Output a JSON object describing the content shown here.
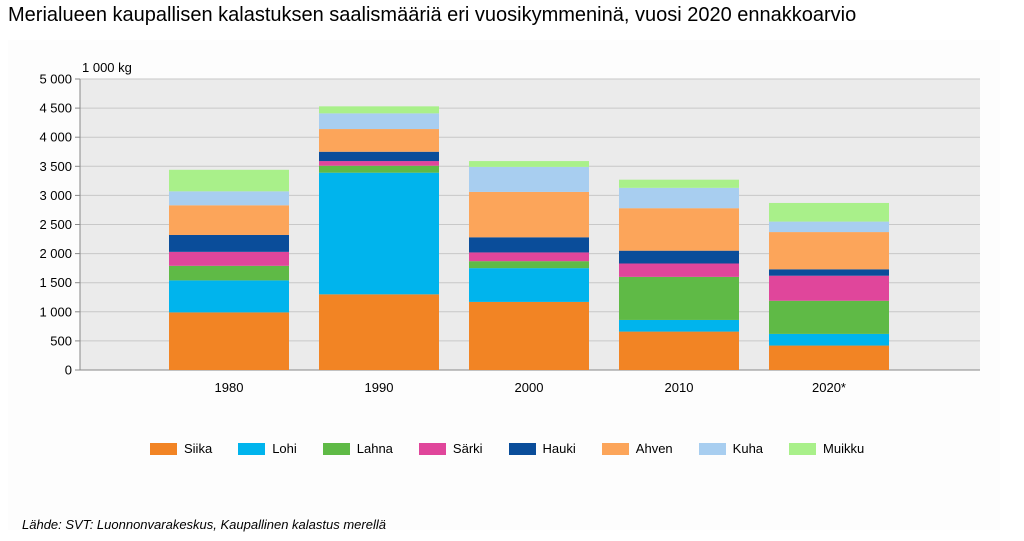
{
  "chart_data": {
    "type": "bar",
    "stacked": true,
    "title": "Merialueen kaupallisen kalastuksen saalismääriä eri vuosikymmeninä, vuosi 2020 ennakkoarvio",
    "unit_label": "1 000 kg",
    "categories": [
      "1980",
      "1990",
      "2000",
      "2010",
      "2020*"
    ],
    "ylim": [
      0,
      5000
    ],
    "yticks": [
      0,
      500,
      1000,
      1500,
      2000,
      2500,
      3000,
      3500,
      4000,
      4500,
      5000
    ],
    "ytick_labels": [
      "0",
      "500",
      "1 000",
      "1 500",
      "2 000",
      "2 500",
      "3 000",
      "3 500",
      "4 000",
      "4 500",
      "5 000"
    ],
    "grid": true,
    "legend_position": "bottom",
    "series": [
      {
        "name": "Siika",
        "color": "#f28424",
        "values": [
          990,
          1300,
          1170,
          660,
          420
        ]
      },
      {
        "name": "Lohi",
        "color": "#00b4ed",
        "values": [
          550,
          2090,
          580,
          200,
          200
        ]
      },
      {
        "name": "Lahna",
        "color": "#5fba46",
        "values": [
          250,
          120,
          120,
          740,
          570
        ]
      },
      {
        "name": "Särki",
        "color": "#e0469b",
        "values": [
          240,
          80,
          150,
          230,
          430
        ]
      },
      {
        "name": "Hauki",
        "color": "#0a4d9a",
        "values": [
          290,
          160,
          260,
          220,
          110
        ]
      },
      {
        "name": "Ahven",
        "color": "#fca55a",
        "values": [
          510,
          390,
          780,
          730,
          640
        ]
      },
      {
        "name": "Kuha",
        "color": "#a8cef0",
        "values": [
          240,
          270,
          430,
          350,
          180
        ]
      },
      {
        "name": "Muikku",
        "color": "#a9f08a",
        "values": [
          370,
          120,
          100,
          140,
          320
        ]
      }
    ]
  },
  "source_text": "Lähde: SVT: Luonnonvarakeskus, Kaupallinen kalastus merellä"
}
